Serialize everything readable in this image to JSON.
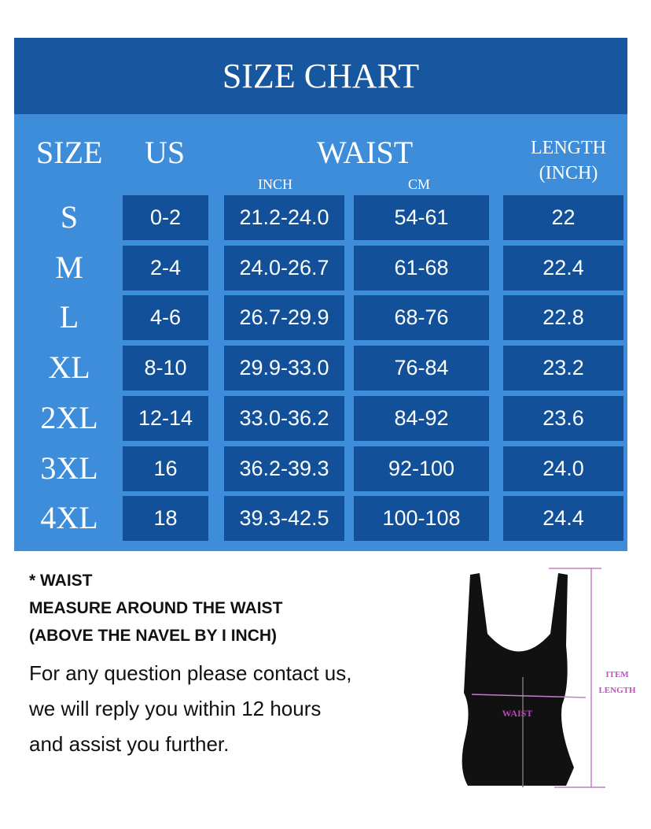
{
  "title": "SIZE CHART",
  "headers": {
    "size": "SIZE",
    "us": "US",
    "waist": "WAIST",
    "inch": "INCH",
    "cm": "CM",
    "length": "LENGTH",
    "length_unit": "(INCH)"
  },
  "rows": [
    {
      "size": "S",
      "us": "0-2",
      "inch": "21.2-24.0",
      "cm": "54-61",
      "length": "22"
    },
    {
      "size": "M",
      "us": "2-4",
      "inch": "24.0-26.7",
      "cm": "61-68",
      "length": "22.4"
    },
    {
      "size": "L",
      "us": "4-6",
      "inch": "26.7-29.9",
      "cm": "68-76",
      "length": "22.8"
    },
    {
      "size": "XL",
      "us": "8-10",
      "inch": "29.9-33.0",
      "cm": "76-84",
      "length": "23.2"
    },
    {
      "size": "2XL",
      "us": "12-14",
      "inch": "33.0-36.2",
      "cm": "84-92",
      "length": "23.6"
    },
    {
      "size": "3XL",
      "us": "16",
      "inch": "36.2-39.3",
      "cm": "92-100",
      "length": "24.0"
    },
    {
      "size": "4XL",
      "us": "18",
      "inch": "39.3-42.5",
      "cm": "100-108",
      "length": "24.4"
    }
  ],
  "notes": {
    "line1": "* WAIST",
    "line2": "MEASURE AROUND THE WAIST",
    "line3": "(ABOVE THE NAVEL BY I INCH)",
    "line4": "For any question please contact us,",
    "line5": "we will reply you within 12 hours",
    "line6": "and assist you further."
  },
  "diagram": {
    "waist_label": "WAIST",
    "item_label": "ITEM",
    "length_label": "LENGTH"
  },
  "colors": {
    "header": "#17579f",
    "body": "#3d8ddb",
    "cell": "#12519a",
    "measure": "#c27fc8",
    "waist_text": "#c040c0"
  }
}
